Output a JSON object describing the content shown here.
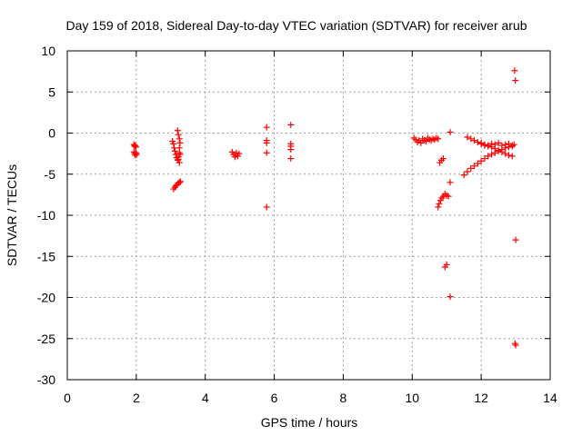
{
  "chart_data": {
    "type": "scatter",
    "title": "Day 159 of 2018, Sidereal Day-to-day VTEC variation (SDTVAR) for receiver arub",
    "xlabel": "GPS time / hours",
    "ylabel": "SDTVAR / TECUs",
    "xlim": [
      0,
      14
    ],
    "ylim": [
      -30,
      10
    ],
    "xticks": [
      0,
      2,
      4,
      6,
      8,
      10,
      12,
      14
    ],
    "yticks": [
      -30,
      -25,
      -20,
      -15,
      -10,
      -5,
      0,
      5,
      10
    ],
    "grid": true,
    "marker": "plus",
    "color": "#ff0000",
    "series": [
      {
        "points": [
          [
            1.93,
            -1.4
          ],
          [
            1.95,
            -1.6
          ],
          [
            1.97,
            -1.5
          ],
          [
            1.99,
            -1.7
          ],
          [
            1.93,
            -2.3
          ],
          [
            1.95,
            -2.5
          ],
          [
            1.97,
            -2.7
          ],
          [
            1.99,
            -2.4
          ],
          [
            2.01,
            -2.6
          ],
          [
            3.05,
            -1.0
          ],
          [
            3.08,
            -1.3
          ],
          [
            3.1,
            -1.8
          ],
          [
            3.12,
            -2.2
          ],
          [
            3.15,
            -2.6
          ],
          [
            3.17,
            -3.0
          ],
          [
            3.2,
            -3.3
          ],
          [
            3.22,
            -2.9
          ],
          [
            3.25,
            -2.4
          ],
          [
            3.08,
            -6.8
          ],
          [
            3.12,
            -6.6
          ],
          [
            3.15,
            -6.4
          ],
          [
            3.18,
            -6.3
          ],
          [
            3.22,
            -6.1
          ],
          [
            3.25,
            -6.0
          ],
          [
            3.28,
            -5.9
          ],
          [
            3.2,
            0.3
          ],
          [
            3.22,
            -0.2
          ],
          [
            3.25,
            -0.7
          ],
          [
            3.27,
            -1.2
          ],
          [
            3.25,
            -1.8
          ],
          [
            3.27,
            -2.6
          ],
          [
            3.25,
            -3.6
          ],
          [
            3.22,
            -3.2
          ],
          [
            4.78,
            -2.3
          ],
          [
            4.82,
            -2.6
          ],
          [
            4.86,
            -2.9
          ],
          [
            4.9,
            -2.4
          ],
          [
            4.94,
            -2.8
          ],
          [
            4.98,
            -2.5
          ],
          [
            5.78,
            0.7
          ],
          [
            5.78,
            -0.9
          ],
          [
            5.78,
            -1.2
          ],
          [
            5.78,
            -2.4
          ],
          [
            5.78,
            -9.0
          ],
          [
            6.48,
            1.0
          ],
          [
            6.48,
            -1.3
          ],
          [
            6.48,
            -1.6
          ],
          [
            6.48,
            -2.0
          ],
          [
            6.48,
            -3.1
          ],
          [
            10.05,
            -0.6
          ],
          [
            10.1,
            -0.8
          ],
          [
            10.15,
            -1.1
          ],
          [
            10.2,
            -0.9
          ],
          [
            10.25,
            -1.2
          ],
          [
            10.3,
            -0.7
          ],
          [
            10.35,
            -0.9
          ],
          [
            10.4,
            -1.0
          ],
          [
            10.45,
            -0.6
          ],
          [
            10.5,
            -0.8
          ],
          [
            10.55,
            -0.9
          ],
          [
            10.6,
            -0.7
          ],
          [
            10.65,
            -0.8
          ],
          [
            10.7,
            -0.6
          ],
          [
            10.75,
            -0.7
          ],
          [
            10.8,
            -3.6
          ],
          [
            10.85,
            -3.3
          ],
          [
            10.9,
            -3.1
          ],
          [
            10.75,
            -9.0
          ],
          [
            10.78,
            -8.6
          ],
          [
            10.82,
            -8.2
          ],
          [
            10.86,
            -7.9
          ],
          [
            10.9,
            -7.7
          ],
          [
            10.95,
            -7.4
          ],
          [
            11.0,
            -7.6
          ],
          [
            11.05,
            -7.7
          ],
          [
            10.95,
            -16.3
          ],
          [
            11.0,
            -16.0
          ],
          [
            11.1,
            0.1
          ],
          [
            11.1,
            -6.0
          ],
          [
            11.1,
            -19.9
          ],
          [
            11.5,
            -5.1
          ],
          [
            11.6,
            -4.7
          ],
          [
            11.7,
            -4.3
          ],
          [
            11.8,
            -4.0
          ],
          [
            11.9,
            -3.7
          ],
          [
            12.0,
            -3.4
          ],
          [
            12.1,
            -3.1
          ],
          [
            12.2,
            -2.8
          ],
          [
            12.3,
            -2.6
          ],
          [
            12.4,
            -2.4
          ],
          [
            12.5,
            -2.2
          ],
          [
            12.6,
            -2.0
          ],
          [
            12.7,
            -1.8
          ],
          [
            12.8,
            -1.7
          ],
          [
            12.9,
            -1.6
          ],
          [
            11.6,
            -0.5
          ],
          [
            11.7,
            -0.7
          ],
          [
            11.8,
            -0.9
          ],
          [
            11.9,
            -1.1
          ],
          [
            12.0,
            -1.3
          ],
          [
            12.1,
            -1.5
          ],
          [
            12.2,
            -1.6
          ],
          [
            12.3,
            -1.7
          ],
          [
            12.4,
            -1.9
          ],
          [
            12.5,
            -2.1
          ],
          [
            12.6,
            -2.3
          ],
          [
            12.7,
            -2.5
          ],
          [
            12.8,
            -2.7
          ],
          [
            12.9,
            -2.8
          ],
          [
            12.0,
            -1.2
          ],
          [
            12.1,
            -1.4
          ],
          [
            12.2,
            -1.5
          ],
          [
            12.3,
            -1.3
          ],
          [
            12.4,
            -1.4
          ],
          [
            12.5,
            -1.2
          ],
          [
            12.6,
            -1.5
          ],
          [
            12.7,
            -1.4
          ],
          [
            12.8,
            -1.3
          ],
          [
            12.9,
            -1.5
          ],
          [
            12.95,
            -1.4
          ],
          [
            12.97,
            7.6
          ],
          [
            12.99,
            6.4
          ],
          [
            13.0,
            -13.0
          ],
          [
            12.98,
            -25.6
          ],
          [
            13.0,
            -25.8
          ]
        ]
      }
    ]
  }
}
